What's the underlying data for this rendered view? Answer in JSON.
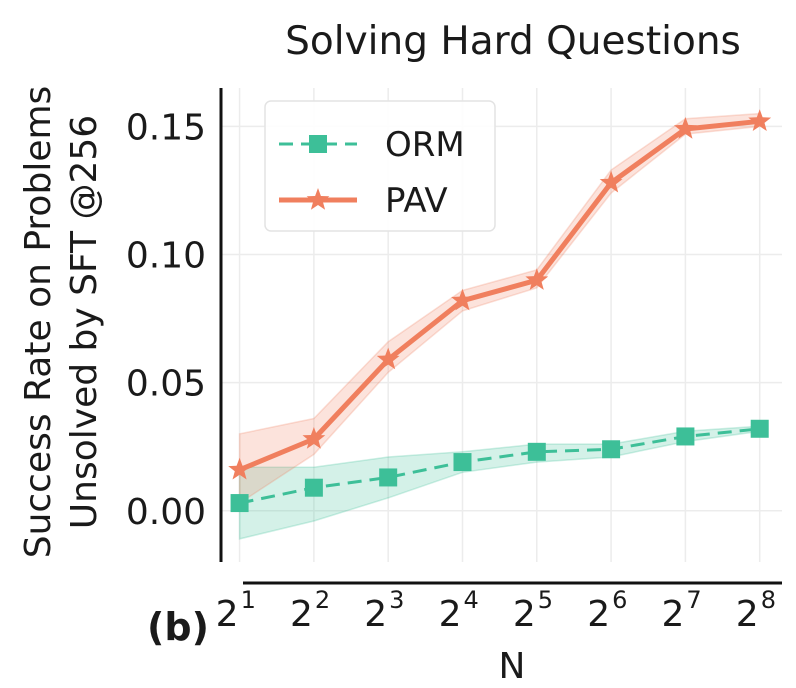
{
  "chart_data": {
    "type": "line",
    "title": "Solving Hard Questions",
    "xlabel": "N",
    "ylabel": [
      "Success Rate on Problems",
      "Unsolved by SFT @256"
    ],
    "panel_label": "(b)",
    "x": [
      1,
      2,
      3,
      4,
      5,
      6,
      7,
      8
    ],
    "x_tick_base": "2",
    "x_tick_exponents": [
      "1",
      "2",
      "3",
      "4",
      "5",
      "6",
      "7",
      "8"
    ],
    "y_ticks": [
      "0.00",
      "0.05",
      "0.10",
      "0.15"
    ],
    "y_tick_values": [
      0.0,
      0.05,
      0.1,
      0.15
    ],
    "ylim": [
      -0.02,
      0.165
    ],
    "xlim": [
      0.75,
      8.3
    ],
    "grid": true,
    "legend_position": "top-left",
    "series": [
      {
        "name": "ORM",
        "color": "#3dbf98",
        "marker": "square",
        "linestyle": "dashed",
        "values": [
          0.003,
          0.009,
          0.013,
          0.019,
          0.023,
          0.024,
          0.029,
          0.032
        ],
        "lower": [
          -0.011,
          -0.004,
          0.005,
          0.015,
          0.019,
          0.021,
          0.027,
          0.031
        ],
        "upper": [
          0.017,
          0.017,
          0.021,
          0.023,
          0.026,
          0.026,
          0.031,
          0.033
        ]
      },
      {
        "name": "PAV",
        "color": "#f07f5e",
        "marker": "star",
        "linestyle": "solid",
        "values": [
          0.016,
          0.028,
          0.059,
          0.082,
          0.09,
          0.128,
          0.149,
          0.152
        ],
        "lower": [
          0.003,
          0.022,
          0.054,
          0.078,
          0.087,
          0.124,
          0.147,
          0.15
        ],
        "upper": [
          0.03,
          0.036,
          0.066,
          0.086,
          0.094,
          0.133,
          0.153,
          0.155
        ]
      }
    ]
  }
}
